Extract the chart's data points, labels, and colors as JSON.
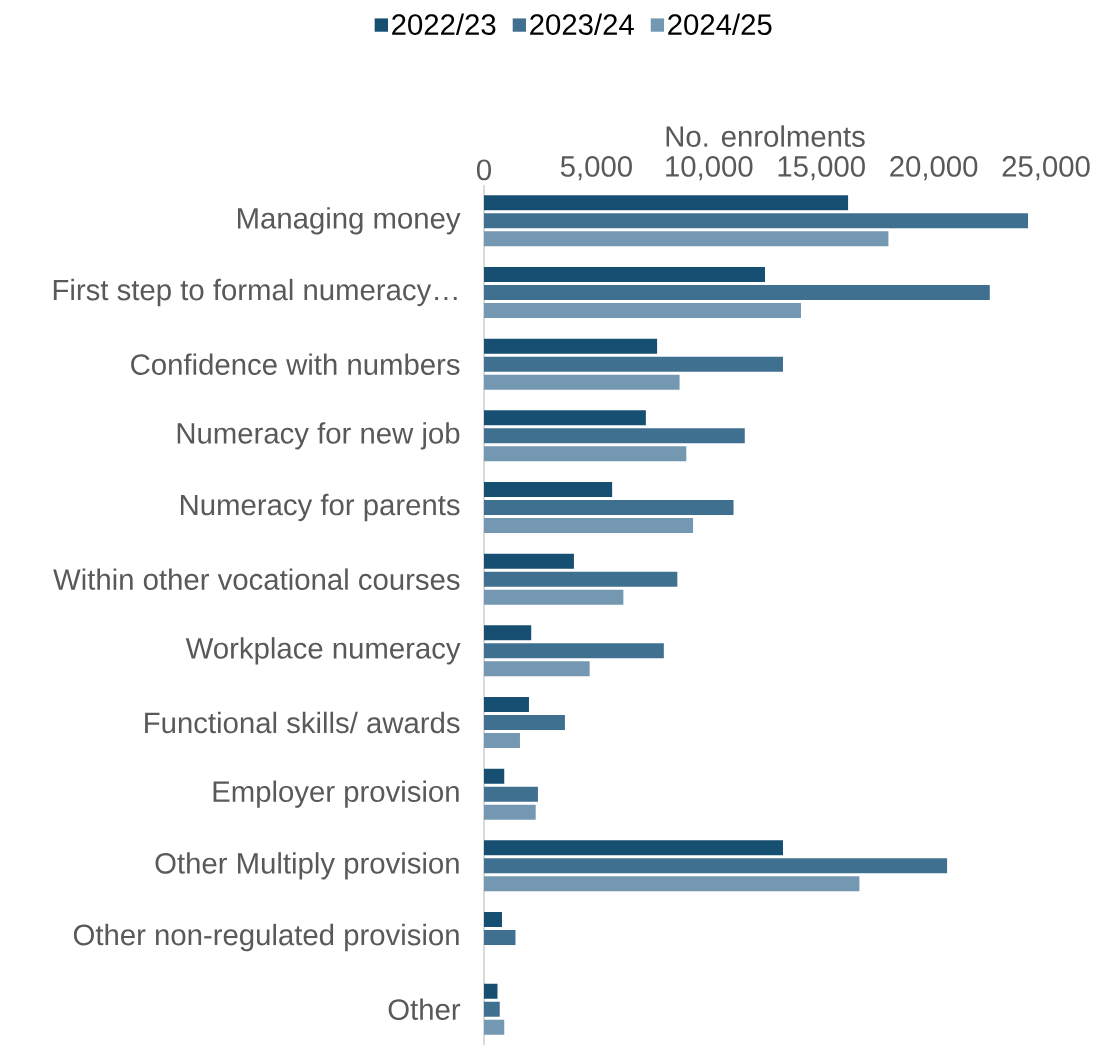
{
  "chart_data": {
    "type": "bar",
    "orientation": "horizontal",
    "xlabel": "No. enrolments",
    "legend": "top",
    "categories": [
      "Managing money",
      "First step to formal numeracy…",
      "Confidence with numbers",
      "Numeracy for new job",
      "Numeracy for parents",
      "Within other vocational courses",
      "Workplace numeracy",
      "Functional skills/ awards",
      "Employer provision",
      "Other Multiply provision",
      "Other non-regulated provision",
      "Other"
    ],
    "series": [
      {
        "name": "2022/23",
        "color": "#174f73",
        "values": [
          16200,
          12500,
          7700,
          7200,
          5700,
          4000,
          2100,
          2000,
          900,
          13300,
          800,
          600
        ]
      },
      {
        "name": "2023/24",
        "color": "#40708f",
        "values": [
          24200,
          22500,
          13300,
          11600,
          11100,
          8600,
          8000,
          3600,
          2400,
          20600,
          1400,
          700
        ]
      },
      {
        "name": "2024/25",
        "color": "#7498b1",
        "values": [
          18000,
          14100,
          8700,
          9000,
          9300,
          6200,
          4700,
          1600,
          2300,
          16700,
          null,
          900
        ]
      }
    ],
    "xlim": [
      0,
      25000
    ],
    "xticks": [
      0,
      {
        "value": 5000,
        "label": "5,000"
      },
      {
        "value": 10000,
        "label": "10,000"
      },
      {
        "value": 15000,
        "label": "15,000"
      },
      {
        "value": 20000,
        "label": "20,000"
      },
      {
        "value": 25000,
        "label": "25,000"
      }
    ]
  }
}
